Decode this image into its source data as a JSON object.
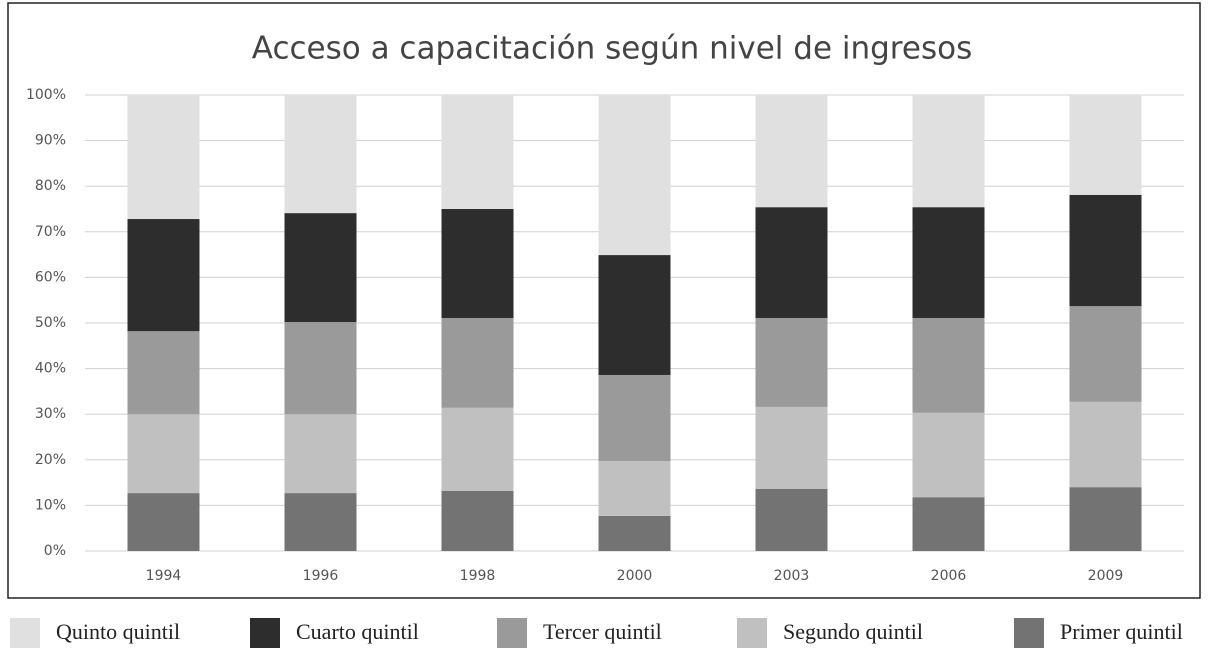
{
  "chart_data": {
    "type": "stacked_bar",
    "title": "Acceso a capacitación según nivel de ingresos",
    "categories": [
      "1994",
      "1996",
      "1998",
      "2000",
      "2003",
      "2006",
      "2009"
    ],
    "series": [
      {
        "name": "Quinto quintil",
        "color": "#e0e0e0",
        "values": [
          27.2,
          25.9,
          25,
          35.1,
          24.6,
          24.6,
          21.9
        ]
      },
      {
        "name": "Cuarto quintil",
        "color": "#2d2d2d",
        "values": [
          24.6,
          23.9,
          23.9,
          26.3,
          24.3,
          24.3,
          24.4
        ]
      },
      {
        "name": "Tercer quintil",
        "color": "#9a9a9a",
        "values": [
          18.2,
          20.2,
          19.7,
          18.9,
          19.5,
          20.8,
          21
        ]
      },
      {
        "name": "Segundo quintil",
        "color": "#c0c0c0",
        "values": [
          17.3,
          17.3,
          18.2,
          12,
          18,
          18.5,
          18.7
        ]
      },
      {
        "name": "Primer quintil",
        "color": "#737373",
        "values": [
          12.7,
          12.7,
          13.2,
          7.7,
          13.6,
          11.8,
          14
        ]
      }
    ],
    "ylim": [
      0,
      100
    ],
    "yticks": [
      {
        "value": 0,
        "label": "0%"
      },
      {
        "value": 10,
        "label": "10%"
      },
      {
        "value": 20,
        "label": "20%"
      },
      {
        "value": 30,
        "label": "30%"
      },
      {
        "value": 40,
        "label": "40%"
      },
      {
        "value": 50,
        "label": "50%"
      },
      {
        "value": 60,
        "label": "60%"
      },
      {
        "value": 70,
        "label": "70%"
      },
      {
        "value": 80,
        "label": "80%"
      },
      {
        "value": 90,
        "label": "90%"
      },
      {
        "value": 100,
        "label": "100%"
      }
    ],
    "grid": true,
    "legend": "bottom"
  }
}
